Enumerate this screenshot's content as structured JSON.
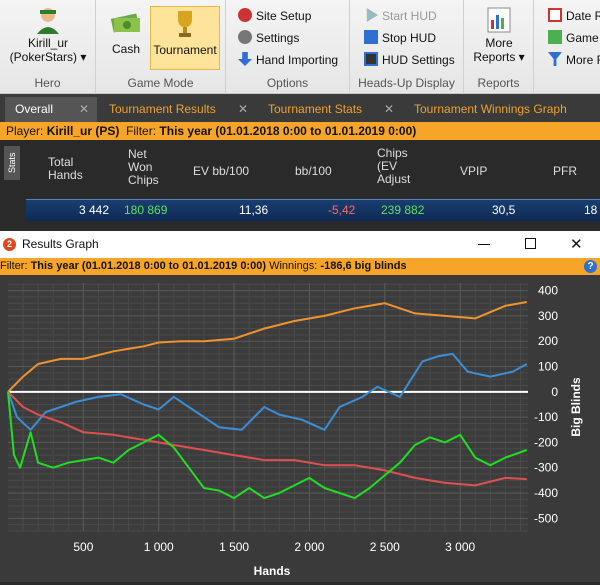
{
  "ribbon": {
    "hero_name": "Kirill_ur",
    "hero_site": "(PokerStars) ▾",
    "hero_label": "Hero",
    "cash_label": "Cash",
    "tournament_label": "Tournament",
    "game_mode_label": "Game Mode",
    "site_setup": "Site Setup",
    "settings": "Settings",
    "hand_importing": "Hand Importing",
    "options_label": "Options",
    "start_hud": "Start HUD",
    "stop_hud": "Stop HUD",
    "hud_settings": "HUD Settings",
    "hud_group_label": "Heads-Up Display",
    "more_reports": "More",
    "more_reports2": "Reports ▾",
    "reports_label": "Reports",
    "date_r": "Date R",
    "game": "Game",
    "more_f": "More F"
  },
  "tabs": [
    {
      "label": "Overall"
    },
    {
      "label": "Tournament Results"
    },
    {
      "label": "Tournament Stats"
    },
    {
      "label": "Tournament Winnings Graph"
    }
  ],
  "filterbar": {
    "player_label": "Player:",
    "player": "Kirill_ur (PS)",
    "filter_label": "Filter:",
    "filter": "This year (01.01.2018 0:00 to 01.01.2019 0:00)"
  },
  "table": {
    "side_label": "Stats",
    "headers": [
      "Total\nHands",
      "Net\nWon\nChips",
      "EV bb/100",
      "bb/100",
      "Chips\n(EV\nAdjust",
      "VPIP",
      "PFR"
    ],
    "row": [
      "3 442",
      "180 869",
      "11,36",
      "-5,42",
      "239 882",
      "30,5",
      "18"
    ]
  },
  "window": {
    "title": "Results Graph",
    "filter_label": "Filter:",
    "filter": "This year (01.01.2018 0:00 to 01.01.2019 0:00)",
    "winnings_label": "Winnings:",
    "winnings": "-186,6 big blinds"
  },
  "colors": {
    "orange": "#f7a528",
    "blue": "#3a8fd8",
    "red": "#e05050",
    "green": "#22dd22",
    "orange_line": "#f0922e"
  },
  "chart_data": {
    "type": "line",
    "xlabel": "Hands",
    "ylabel": "Big Blinds",
    "xlim": [
      0,
      3450
    ],
    "ylim": [
      -550,
      430
    ],
    "x_ticks": [
      "500",
      "1 000",
      "1 500",
      "2 000",
      "2 500",
      "3 000"
    ],
    "x_tick_values": [
      500,
      1000,
      1500,
      2000,
      2500,
      3000
    ],
    "y_ticks": [
      "400",
      "300",
      "200",
      "100",
      "0",
      "-100",
      "-200",
      "-300",
      "-400",
      "-500"
    ],
    "y_tick_values": [
      400,
      300,
      200,
      100,
      0,
      -100,
      -200,
      -300,
      -400,
      -500
    ],
    "series": [
      {
        "color": "#f0922e",
        "x": [
          0,
          100,
          200,
          350,
          500,
          700,
          900,
          1000,
          1150,
          1300,
          1500,
          1700,
          1900,
          2100,
          2300,
          2500,
          2700,
          2900,
          3100,
          3300,
          3442
        ],
        "y": [
          0,
          60,
          110,
          130,
          130,
          160,
          180,
          195,
          200,
          200,
          210,
          250,
          280,
          300,
          330,
          350,
          310,
          300,
          290,
          340,
          355
        ]
      },
      {
        "color": "#3a8fd8",
        "x": [
          0,
          60,
          150,
          250,
          350,
          450,
          600,
          750,
          900,
          1000,
          1100,
          1250,
          1400,
          1550,
          1700,
          1800,
          1950,
          2100,
          2200,
          2350,
          2450,
          2600,
          2750,
          2850,
          2950,
          3050,
          3200,
          3350,
          3442
        ],
        "y": [
          0,
          -100,
          -150,
          -80,
          -60,
          -40,
          -20,
          -10,
          -50,
          -70,
          -20,
          -80,
          -140,
          -150,
          -60,
          -90,
          -110,
          -150,
          -60,
          -20,
          20,
          -20,
          120,
          140,
          150,
          80,
          60,
          80,
          110
        ]
      },
      {
        "color": "#e05050",
        "x": [
          0,
          100,
          200,
          350,
          500,
          700,
          900,
          1100,
          1300,
          1500,
          1700,
          1900,
          2100,
          2300,
          2500,
          2700,
          2900,
          3100,
          3300,
          3442
        ],
        "y": [
          0,
          -60,
          -90,
          -120,
          -160,
          -170,
          -190,
          -210,
          -230,
          -250,
          -270,
          -270,
          -290,
          -290,
          -310,
          -340,
          -360,
          -370,
          -340,
          -345
        ]
      },
      {
        "color": "#22dd22",
        "x": [
          0,
          40,
          80,
          150,
          200,
          300,
          400,
          500,
          600,
          700,
          800,
          900,
          1000,
          1100,
          1200,
          1300,
          1400,
          1500,
          1600,
          1700,
          1800,
          1900,
          2000,
          2100,
          2200,
          2300,
          2400,
          2500,
          2600,
          2700,
          2800,
          2900,
          3000,
          3100,
          3200,
          3300,
          3442
        ],
        "y": [
          0,
          -250,
          -300,
          -160,
          -280,
          -300,
          -280,
          -270,
          -260,
          -280,
          -230,
          -200,
          -170,
          -220,
          -300,
          -380,
          -390,
          -420,
          -380,
          -420,
          -400,
          -370,
          -340,
          -380,
          -400,
          -420,
          -380,
          -330,
          -280,
          -210,
          -180,
          -200,
          -170,
          -260,
          -290,
          -260,
          -230
        ]
      }
    ]
  }
}
